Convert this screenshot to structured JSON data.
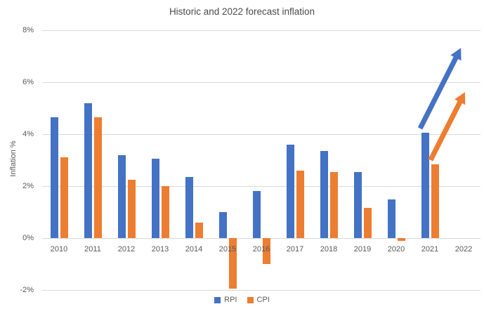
{
  "chart_data": {
    "type": "bar",
    "title": "Historic and 2022 forecast inflation",
    "xlabel": "",
    "ylabel": "Inflation %",
    "ylim": [
      -2,
      8
    ],
    "grid": true,
    "legend_position": "bottom",
    "categories": [
      "2010",
      "2011",
      "2012",
      "2013",
      "2014",
      "2015",
      "2016",
      "2017",
      "2018",
      "2019",
      "2020",
      "2021",
      "2022"
    ],
    "series": [
      {
        "name": "RPI",
        "color": "#4472C4",
        "values": [
          4.65,
          5.2,
          3.2,
          3.05,
          2.35,
          1.0,
          1.8,
          3.6,
          3.35,
          2.55,
          1.5,
          4.05,
          null
        ]
      },
      {
        "name": "CPI",
        "color": "#ED7D31",
        "values": [
          3.1,
          4.65,
          2.25,
          2.0,
          0.6,
          -1.95,
          -1.0,
          2.6,
          2.55,
          1.15,
          -0.1,
          2.85,
          null
        ]
      }
    ],
    "y_ticks": [
      {
        "v": 8,
        "label": "8%"
      },
      {
        "v": 6,
        "label": "6%"
      },
      {
        "v": 4,
        "label": "4%"
      },
      {
        "v": 2,
        "label": "2%"
      },
      {
        "v": 0,
        "label": "0%"
      },
      {
        "v": -2,
        "label": "-2%"
      }
    ],
    "annotations": [
      {
        "type": "forecast-arrow",
        "series": "RPI",
        "color": "#4472C4",
        "from": {
          "x": 10.71,
          "value": 4.22
        },
        "to": {
          "x": 11.92,
          "value": 7.32
        }
      },
      {
        "type": "forecast-arrow",
        "series": "CPI",
        "color": "#ED7D31",
        "from": {
          "x": 11.02,
          "value": 3.0
        },
        "to": {
          "x": 12.04,
          "value": 5.62
        }
      }
    ]
  }
}
